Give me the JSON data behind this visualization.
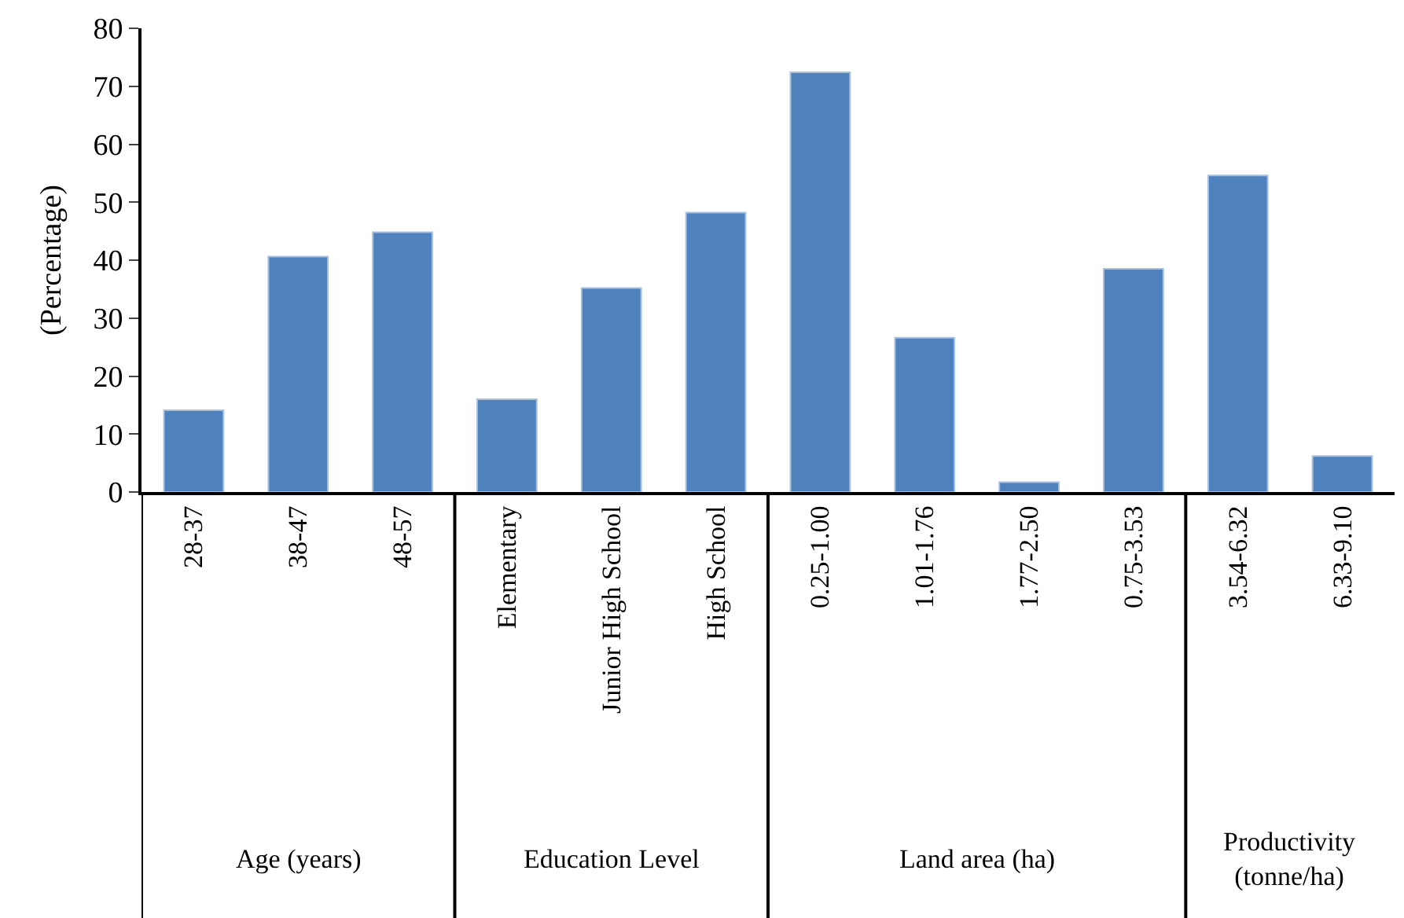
{
  "chart_data": {
    "type": "bar",
    "ylabel": "(Percentage)",
    "categories": [
      "28-37",
      "38-47",
      "48-57",
      "Elementary",
      "Junior High School",
      "High School",
      "0.25-1.00",
      "1.01-1.76",
      "1.77-2.50",
      "0.75-3.53",
      "3.54-6.32",
      "6.33-9.10"
    ],
    "values": [
      14.1,
      40.6,
      44.8,
      16.0,
      35.2,
      48.2,
      72.4,
      26.6,
      1.7,
      38.5,
      54.6,
      6.2
    ],
    "color": "#4f81bd",
    "ylim": [
      0,
      80
    ],
    "yticks": [
      0,
      10,
      20,
      30,
      40,
      50,
      60,
      70,
      80
    ],
    "annotations": [
      "Age (years)",
      "Education Level",
      "Land area (ha)",
      "Productivity (tonne/ha)"
    ]
  }
}
